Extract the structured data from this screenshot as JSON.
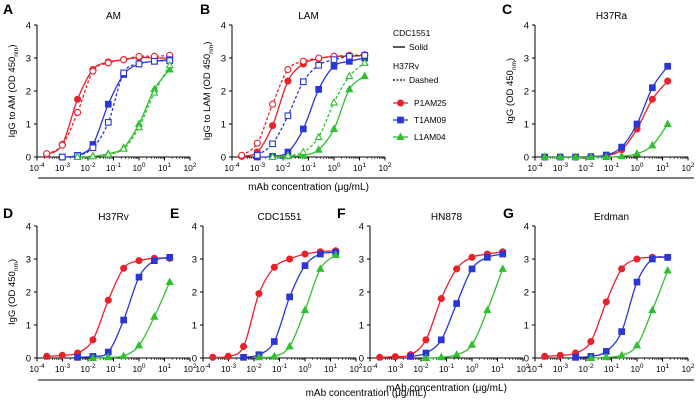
{
  "figure": {
    "shared_xlabel": "mAb concentration (μg/mL)",
    "legend": {
      "strain_header_1": "CDC1551",
      "strain_style_1": "Solid",
      "strain_header_2": "H37Rv",
      "strain_style_2": "Dashed",
      "entries": [
        {
          "name": "P1AM25",
          "color": "#e8222a",
          "marker": "circle"
        },
        {
          "name": "T1AM09",
          "color": "#2a36d6",
          "marker": "square"
        },
        {
          "name": "L1AM04",
          "color": "#2fc02f",
          "marker": "triangle"
        }
      ]
    }
  },
  "chart_data": [
    {
      "panel": "A",
      "title": "AM",
      "type": "line",
      "ylabel_main": "IgG to AM (OD 450",
      "ylabel_sub": "nm",
      "ylabel_end": ")",
      "xlim_log10": [
        -4,
        2
      ],
      "ylim": [
        0,
        4
      ],
      "yticks": [
        0,
        1,
        2,
        3,
        4
      ],
      "xticks_log10": [
        -4,
        -3,
        -2,
        -1,
        0,
        1,
        2
      ],
      "xlabel": "",
      "series": [
        {
          "name": "P1AM25",
          "strain": "CDC1551",
          "style": "solid",
          "filled": true,
          "x": [
            0.00024,
            0.00098,
            0.0039,
            0.0156,
            0.0625,
            0.25,
            1.0,
            4.0,
            16.0
          ],
          "y": [
            0.08,
            0.38,
            1.75,
            2.65,
            2.88,
            2.95,
            3.02,
            3.0,
            3.0
          ]
        },
        {
          "name": "P1AM25",
          "strain": "H37Rv",
          "style": "dashed",
          "filled": false,
          "x": [
            0.00024,
            0.00098,
            0.0039,
            0.0156,
            0.0625,
            0.25,
            1.0,
            4.0,
            16.0
          ],
          "y": [
            0.1,
            0.36,
            1.35,
            2.6,
            2.85,
            2.95,
            3.05,
            3.05,
            3.08
          ]
        },
        {
          "name": "T1AM09",
          "strain": "CDC1551",
          "style": "solid",
          "filled": true,
          "x": [
            0.00098,
            0.0039,
            0.0156,
            0.0625,
            0.25,
            1.0,
            4.0,
            16.0
          ],
          "y": [
            0.0,
            0.05,
            0.38,
            1.6,
            2.5,
            2.82,
            2.9,
            2.95
          ]
        },
        {
          "name": "T1AM09",
          "strain": "H37Rv",
          "style": "dashed",
          "filled": false,
          "x": [
            0.00098,
            0.0039,
            0.0156,
            0.0625,
            0.25,
            1.0,
            4.0,
            16.0
          ],
          "y": [
            0.0,
            0.04,
            0.28,
            1.05,
            2.55,
            2.82,
            2.9,
            2.92
          ]
        },
        {
          "name": "L1AM04",
          "strain": "CDC1551",
          "style": "solid",
          "filled": true,
          "x": [
            0.0039,
            0.0156,
            0.0625,
            0.25,
            1.0,
            4.0,
            16.0
          ],
          "y": [
            0.0,
            0.02,
            0.1,
            0.28,
            1.0,
            2.05,
            2.65
          ]
        },
        {
          "name": "L1AM04",
          "strain": "H37Rv",
          "style": "dashed",
          "filled": false,
          "x": [
            0.0039,
            0.0156,
            0.0625,
            0.25,
            1.0,
            4.0,
            16.0
          ],
          "y": [
            0.0,
            0.02,
            0.08,
            0.25,
            0.9,
            1.95,
            2.78
          ]
        }
      ]
    },
    {
      "panel": "B",
      "title": "LAM",
      "type": "line",
      "ylabel_main": "IgG to LAM (OD 450",
      "ylabel_sub": "nm",
      "ylabel_end": ")",
      "xlim_log10": [
        -4,
        2
      ],
      "ylim": [
        0,
        4
      ],
      "yticks": [
        0,
        1,
        2,
        3,
        4
      ],
      "xticks_log10": [
        -4,
        -3,
        -2,
        -1,
        0,
        1,
        2
      ],
      "xlabel": "mAb concentration (μg/mL)",
      "series": [
        {
          "name": "P1AM25",
          "strain": "CDC1551",
          "style": "solid",
          "filled": true,
          "x": [
            0.00024,
            0.00098,
            0.0039,
            0.0156,
            0.0625,
            0.25,
            1.0,
            4.0,
            16.0
          ],
          "y": [
            0.02,
            0.15,
            0.95,
            2.3,
            2.82,
            2.98,
            3.05,
            3.05,
            3.08
          ]
        },
        {
          "name": "P1AM25",
          "strain": "H37Rv",
          "style": "dashed",
          "filled": false,
          "x": [
            0.00024,
            0.00098,
            0.0039,
            0.0156,
            0.0625,
            0.25,
            1.0,
            4.0,
            16.0
          ],
          "y": [
            0.05,
            0.42,
            1.6,
            2.65,
            2.9,
            3.0,
            3.05,
            3.08,
            3.1
          ]
        },
        {
          "name": "T1AM09",
          "strain": "CDC1551",
          "style": "solid",
          "filled": true,
          "x": [
            0.00098,
            0.0039,
            0.0156,
            0.0625,
            0.25,
            1.0,
            4.0,
            16.0
          ],
          "y": [
            0.0,
            0.02,
            0.15,
            0.85,
            2.05,
            2.75,
            2.9,
            3.0
          ]
        },
        {
          "name": "T1AM09",
          "strain": "H37Rv",
          "style": "dashed",
          "filled": false,
          "x": [
            0.00098,
            0.0039,
            0.0156,
            0.0625,
            0.25,
            1.0,
            4.0,
            16.0
          ],
          "y": [
            0.05,
            0.4,
            1.25,
            2.28,
            2.78,
            2.95,
            3.05,
            3.08
          ]
        },
        {
          "name": "L1AM04",
          "strain": "CDC1551",
          "style": "solid",
          "filled": true,
          "x": [
            0.0039,
            0.0156,
            0.0625,
            0.25,
            1.0,
            4.0,
            16.0
          ],
          "y": [
            0.0,
            0.02,
            0.05,
            0.22,
            0.85,
            2.05,
            2.45
          ]
        },
        {
          "name": "L1AM04",
          "strain": "H37Rv",
          "style": "dashed",
          "filled": false,
          "x": [
            0.0039,
            0.0156,
            0.0625,
            0.25,
            1.0,
            4.0,
            16.0
          ],
          "y": [
            0.0,
            0.04,
            0.15,
            0.6,
            1.65,
            2.45,
            2.85
          ]
        }
      ]
    },
    {
      "panel": "C",
      "title": "H37Ra",
      "type": "line",
      "ylabel_main": "IgG (OD 450",
      "ylabel_sub": "nm",
      "ylabel_end": ")",
      "xlim_log10": [
        -4,
        2
      ],
      "ylim": [
        0,
        4
      ],
      "yticks": [
        0,
        1,
        2,
        3,
        4
      ],
      "xticks_log10": [
        -4,
        -3,
        -2,
        -1,
        0,
        1,
        2
      ],
      "xlabel": "",
      "series": [
        {
          "name": "P1AM25",
          "strain": "H37Ra",
          "style": "solid",
          "filled": true,
          "x": [
            0.00024,
            0.00098,
            0.0039,
            0.0156,
            0.0625,
            0.25,
            1.0,
            4.0,
            16.0
          ],
          "y": [
            0.0,
            0.0,
            0.0,
            0.01,
            0.04,
            0.22,
            0.85,
            1.75,
            2.3
          ]
        },
        {
          "name": "T1AM09",
          "strain": "H37Ra",
          "style": "solid",
          "filled": true,
          "x": [
            0.00024,
            0.00098,
            0.0039,
            0.0156,
            0.0625,
            0.25,
            1.0,
            4.0,
            16.0
          ],
          "y": [
            0.0,
            0.0,
            0.0,
            0.01,
            0.06,
            0.3,
            1.0,
            2.1,
            2.75
          ]
        },
        {
          "name": "L1AM04",
          "strain": "H37Ra",
          "style": "solid",
          "filled": true,
          "x": [
            0.00024,
            0.00098,
            0.0039,
            0.0156,
            0.0625,
            0.25,
            1.0,
            4.0,
            16.0
          ],
          "y": [
            0.0,
            0.0,
            0.0,
            0.0,
            0.0,
            0.02,
            0.1,
            0.35,
            1.0
          ]
        }
      ]
    },
    {
      "panel": "D",
      "title": "H37Rv",
      "type": "line",
      "ylabel_main": "IgG (OD 450",
      "ylabel_sub": "nm",
      "ylabel_end": ")",
      "xlim_log10": [
        -4,
        2
      ],
      "ylim": [
        0,
        4
      ],
      "yticks": [
        0,
        1,
        2,
        3,
        4
      ],
      "xticks_log10": [
        -4,
        -3,
        -2,
        -1,
        0,
        1,
        2
      ],
      "xlabel": "",
      "series": [
        {
          "name": "P1AM25",
          "strain": "H37Rv",
          "style": "solid",
          "filled": true,
          "x": [
            0.00024,
            0.00098,
            0.0039,
            0.0156,
            0.0625,
            0.25,
            1.0,
            4.0,
            16.0
          ],
          "y": [
            0.05,
            0.08,
            0.15,
            0.55,
            1.75,
            2.72,
            2.95,
            3.02,
            3.02
          ]
        },
        {
          "name": "T1AM09",
          "strain": "H37Rv",
          "style": "solid",
          "filled": true,
          "x": [
            0.0039,
            0.0156,
            0.0625,
            0.25,
            1.0,
            4.0,
            16.0
          ],
          "y": [
            0.02,
            0.05,
            0.18,
            1.15,
            2.45,
            2.95,
            3.05
          ]
        },
        {
          "name": "L1AM04",
          "strain": "H37Rv",
          "style": "solid",
          "filled": true,
          "x": [
            0.0156,
            0.0625,
            0.25,
            1.0,
            4.0,
            16.0
          ],
          "y": [
            0.0,
            0.02,
            0.06,
            0.38,
            1.25,
            2.3
          ]
        }
      ]
    },
    {
      "panel": "E",
      "title": "CDC1551",
      "type": "line",
      "ylabel_main": "",
      "ylabel_sub": "",
      "ylabel_end": "",
      "xlim_log10": [
        -4,
        2
      ],
      "ylim": [
        0,
        4
      ],
      "yticks": [
        0,
        1,
        2,
        3,
        4
      ],
      "xticks_log10": [
        -4,
        -3,
        -2,
        -1,
        0,
        1,
        2
      ],
      "xlabel": "",
      "series": [
        {
          "name": "P1AM25",
          "strain": "CDC1551",
          "style": "solid",
          "filled": true,
          "x": [
            0.00024,
            0.00098,
            0.0039,
            0.0156,
            0.0625,
            0.25,
            1.0,
            4.0,
            16.0
          ],
          "y": [
            0.02,
            0.05,
            0.35,
            1.95,
            2.75,
            3.0,
            3.15,
            3.22,
            3.25
          ]
        },
        {
          "name": "T1AM09",
          "strain": "CDC1551",
          "style": "solid",
          "filled": true,
          "x": [
            0.0039,
            0.0156,
            0.0625,
            0.25,
            1.0,
            4.0,
            16.0
          ],
          "y": [
            0.02,
            0.1,
            0.5,
            1.85,
            2.8,
            3.15,
            3.2
          ]
        },
        {
          "name": "L1AM04",
          "strain": "CDC1551",
          "style": "solid",
          "filled": true,
          "x": [
            0.0156,
            0.0625,
            0.25,
            1.0,
            4.0,
            16.0
          ],
          "y": [
            0.02,
            0.05,
            0.35,
            1.45,
            2.7,
            3.12
          ]
        }
      ]
    },
    {
      "panel": "F",
      "title": "HN878",
      "type": "line",
      "ylabel_main": "",
      "ylabel_sub": "",
      "ylabel_end": "",
      "xlim_log10": [
        -4,
        2
      ],
      "ylim": [
        0,
        4
      ],
      "yticks": [
        0,
        1,
        2,
        3,
        4
      ],
      "xticks_log10": [
        -4,
        -3,
        -2,
        -1,
        0,
        1,
        2
      ],
      "xlabel": "mAb concentration (μg/mL)",
      "series": [
        {
          "name": "P1AM25",
          "strain": "HN878",
          "style": "solid",
          "filled": true,
          "x": [
            0.00024,
            0.00098,
            0.0039,
            0.0156,
            0.0625,
            0.25,
            1.0,
            4.0,
            16.0
          ],
          "y": [
            0.02,
            0.04,
            0.1,
            0.55,
            1.8,
            2.7,
            3.05,
            3.15,
            3.22
          ]
        },
        {
          "name": "T1AM09",
          "strain": "HN878",
          "style": "solid",
          "filled": true,
          "x": [
            0.0039,
            0.0156,
            0.0625,
            0.25,
            1.0,
            4.0,
            16.0
          ],
          "y": [
            0.05,
            0.15,
            0.55,
            1.65,
            2.7,
            3.05,
            3.15
          ]
        },
        {
          "name": "L1AM04",
          "strain": "HN878",
          "style": "solid",
          "filled": true,
          "x": [
            0.0156,
            0.0625,
            0.25,
            1.0,
            4.0,
            16.0
          ],
          "y": [
            0.0,
            0.02,
            0.1,
            0.4,
            1.45,
            2.7
          ]
        }
      ]
    },
    {
      "panel": "G",
      "title": "Erdman",
      "type": "line",
      "ylabel_main": "",
      "ylabel_sub": "",
      "ylabel_end": "",
      "xlim_log10": [
        -4,
        2
      ],
      "ylim": [
        0,
        4
      ],
      "yticks": [
        0,
        1,
        2,
        3,
        4
      ],
      "xticks_log10": [
        -4,
        -3,
        -2,
        -1,
        0,
        1,
        2
      ],
      "xlabel": "",
      "series": [
        {
          "name": "P1AM25",
          "strain": "Erdman",
          "style": "solid",
          "filled": true,
          "x": [
            0.00024,
            0.00098,
            0.0039,
            0.0156,
            0.0625,
            0.25,
            1.0,
            4.0,
            16.0
          ],
          "y": [
            0.05,
            0.08,
            0.15,
            0.5,
            1.7,
            2.7,
            3.0,
            3.05,
            3.05
          ]
        },
        {
          "name": "T1AM09",
          "strain": "Erdman",
          "style": "solid",
          "filled": true,
          "x": [
            0.0039,
            0.0156,
            0.0625,
            0.25,
            1.0,
            4.0,
            16.0
          ],
          "y": [
            0.02,
            0.05,
            0.2,
            0.8,
            2.3,
            3.0,
            3.05
          ]
        },
        {
          "name": "L1AM04",
          "strain": "Erdman",
          "style": "solid",
          "filled": true,
          "x": [
            0.0156,
            0.0625,
            0.25,
            1.0,
            4.0,
            16.0
          ],
          "y": [
            0.0,
            0.02,
            0.08,
            0.38,
            1.45,
            2.65
          ]
        }
      ]
    }
  ]
}
